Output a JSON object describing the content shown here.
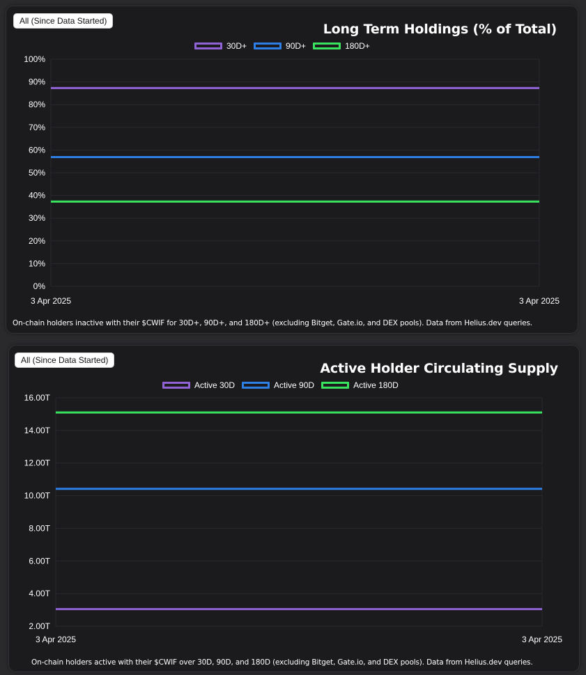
{
  "panels": [
    {
      "range_button": "All (Since Data Started)",
      "caption": "On-chain holders inactive with their $CWIF for 30D+, 90D+, and 180D+ (excluding Bitget, Gate.io, and DEX pools). Data from Helius.dev queries.",
      "legend": [
        "30D+",
        "90D+",
        "180D+"
      ]
    },
    {
      "range_button": "All (Since Data Started)",
      "caption": "On-chain holders active with their $CWIF over 30D, 90D, and 180D (excluding Bitget, Gate.io, and DEX pools). Data from Helius.dev queries.",
      "legend": [
        "Active 30D",
        "Active 90D",
        "Active 180D"
      ]
    }
  ],
  "colors": {
    "series_30": "#8f63d6",
    "series_90": "#2d7fe6",
    "series_180": "#3ae35f",
    "grid": "#2a2a2e",
    "background": "#1b1b1e"
  },
  "chart_data": [
    {
      "type": "line",
      "title": "Long Term Holdings (% of Total)",
      "x": [
        "3 Apr 2025",
        "3 Apr 2025"
      ],
      "xlabel": "",
      "ylabel": "",
      "ylim": [
        0,
        100
      ],
      "yticks": [
        0,
        10,
        20,
        30,
        40,
        50,
        60,
        70,
        80,
        90,
        100
      ],
      "ytick_labels": [
        "0%",
        "10%",
        "20%",
        "30%",
        "40%",
        "50%",
        "60%",
        "70%",
        "80%",
        "90%",
        "100%"
      ],
      "grid": true,
      "legend_position": "top",
      "series": [
        {
          "name": "30D+",
          "color": "#8f63d6",
          "values": [
            87.3,
            87.3
          ]
        },
        {
          "name": "90D+",
          "color": "#2d7fe6",
          "values": [
            56.9,
            56.9
          ]
        },
        {
          "name": "180D+",
          "color": "#3ae35f",
          "values": [
            37.3,
            37.3
          ]
        }
      ]
    },
    {
      "type": "line",
      "title": "Active Holder Circulating Supply",
      "x": [
        "3 Apr 2025",
        "3 Apr 2025"
      ],
      "xlabel": "",
      "ylabel": "",
      "ylim": [
        2,
        16
      ],
      "yticks": [
        2,
        4,
        6,
        8,
        10,
        12,
        14,
        16
      ],
      "ytick_labels": [
        "2.00T",
        "4.00T",
        "6.00T",
        "8.00T",
        "10.00T",
        "12.00T",
        "14.00T",
        "16.00T"
      ],
      "grid": true,
      "legend_position": "top",
      "series": [
        {
          "name": "Active 30D",
          "color": "#8f63d6",
          "values": [
            3.05,
            3.05
          ]
        },
        {
          "name": "Active 90D",
          "color": "#2d7fe6",
          "values": [
            10.42,
            10.42
          ]
        },
        {
          "name": "Active 180D",
          "color": "#3ae35f",
          "values": [
            15.1,
            15.1
          ]
        }
      ]
    }
  ]
}
